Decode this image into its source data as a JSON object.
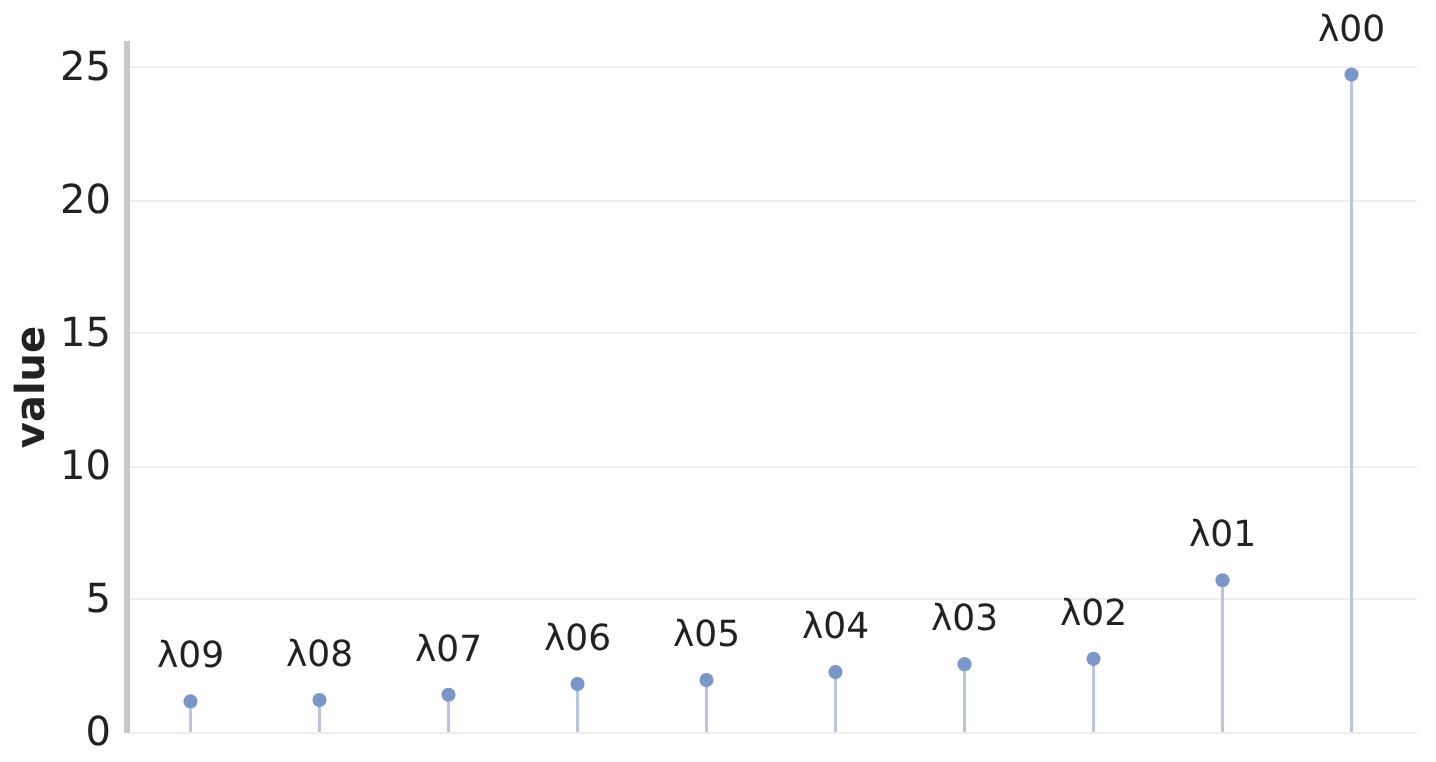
{
  "chart_data": {
    "type": "lollipop",
    "ylabel": "value",
    "categories": [
      "λ09",
      "λ08",
      "λ07",
      "λ06",
      "λ05",
      "λ04",
      "λ03",
      "λ02",
      "λ01",
      "λ00"
    ],
    "series": [
      {
        "color": "#7b96c8",
        "values": [
          1.15,
          1.2,
          1.4,
          1.8,
          1.95,
          2.25,
          2.55,
          2.75,
          5.7,
          24.7
        ]
      }
    ],
    "ylim": [
      0,
      26
    ],
    "yticks": [
      0,
      5,
      10,
      15,
      20,
      25
    ],
    "grid": "y",
    "tick_labels": "y",
    "marker": "circle"
  }
}
